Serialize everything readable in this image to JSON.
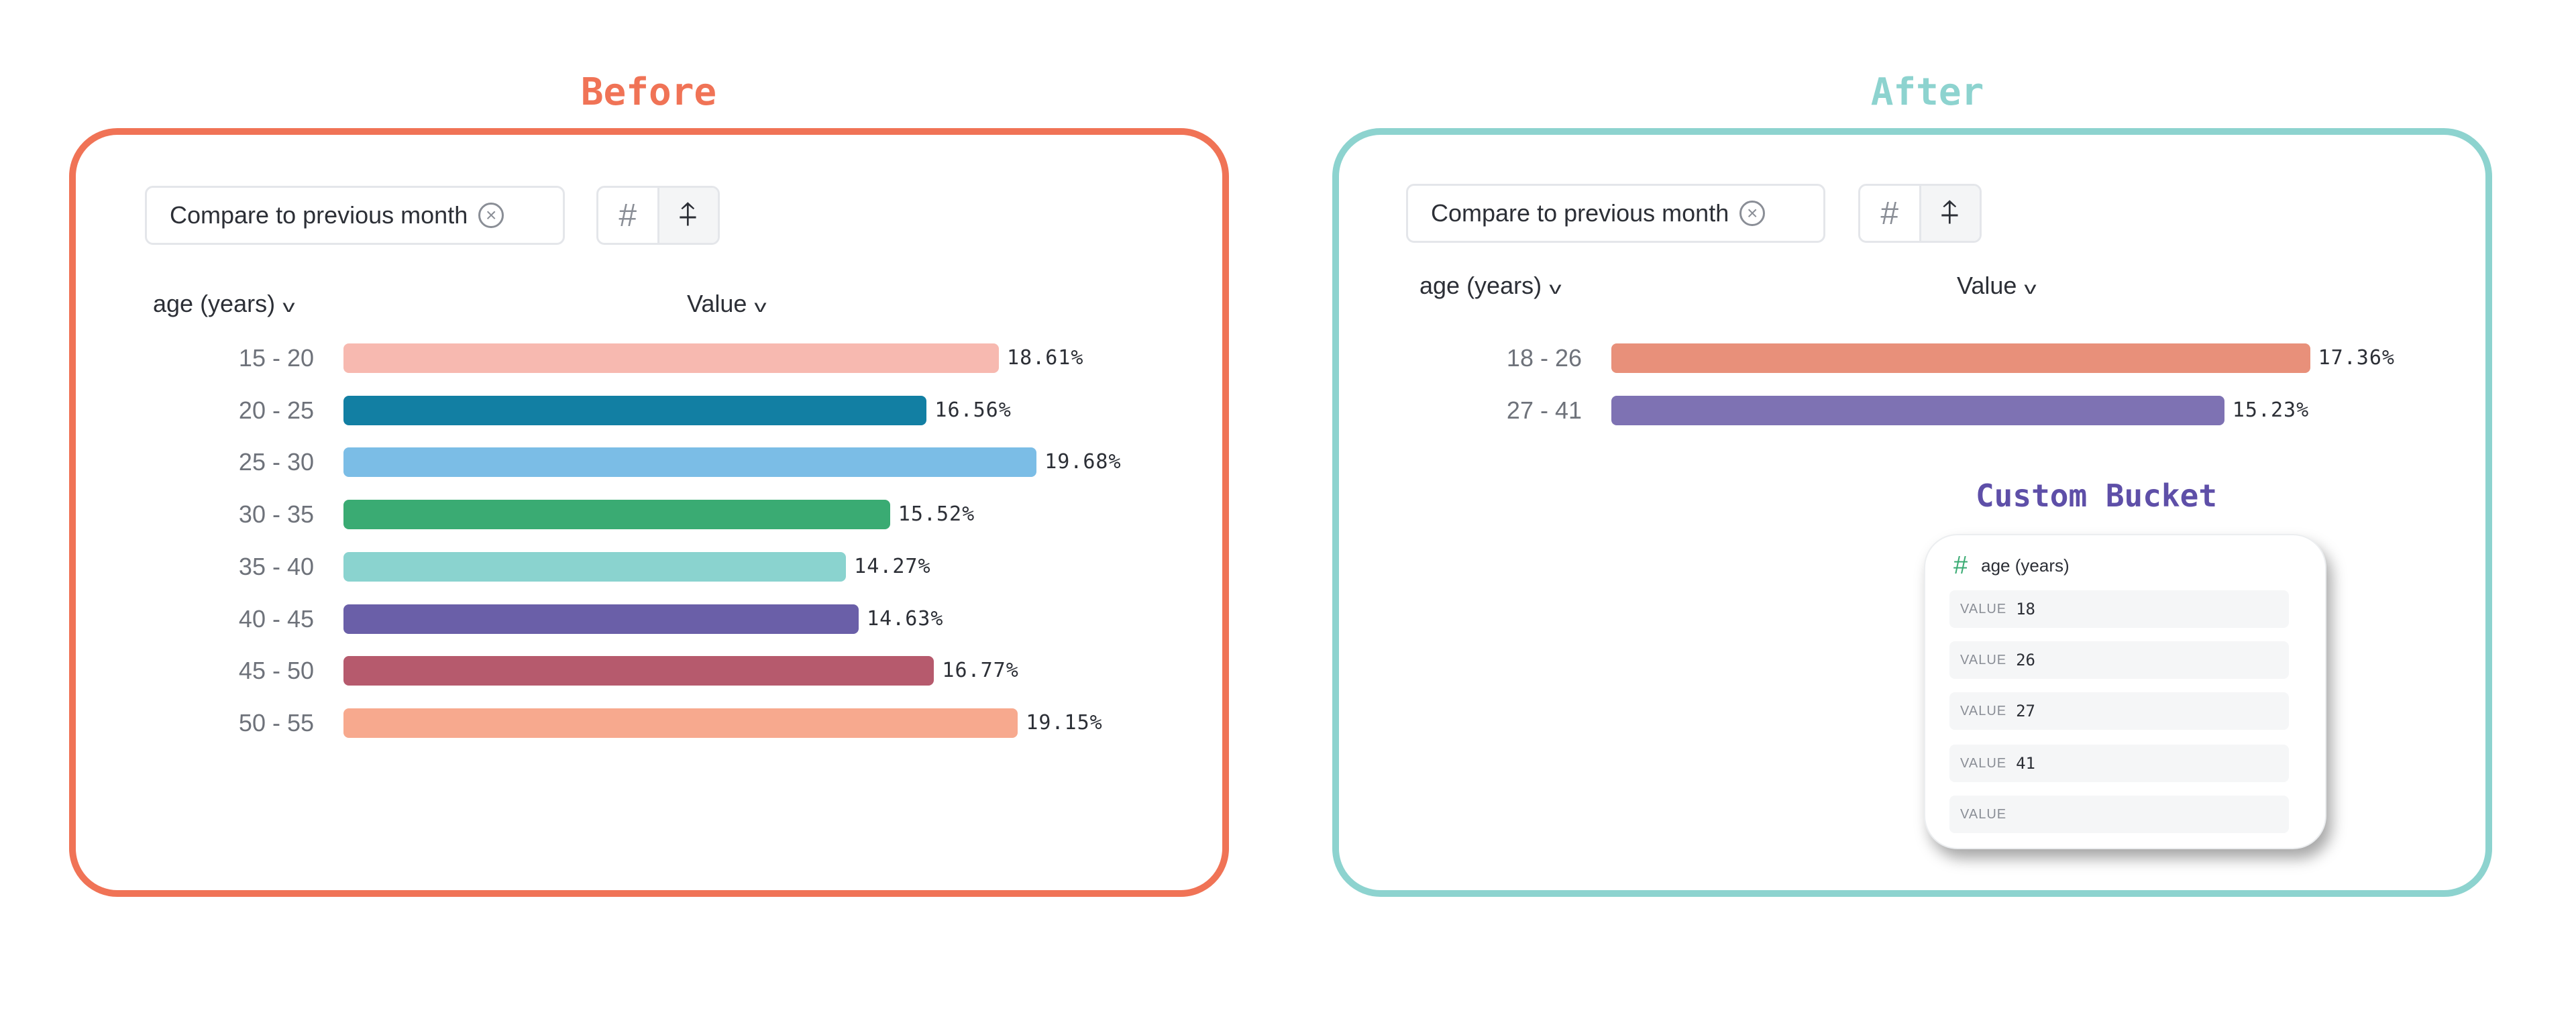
{
  "before": {
    "title": "Before",
    "title_color": "#f07356",
    "compare_chip": {
      "label": "Compare to previous month",
      "clear_icon": "circle-x-icon"
    },
    "toggle_icons": [
      "hash-icon",
      "arrow-up-split-icon"
    ],
    "headers": {
      "dimension": "age (years)",
      "metric": "Value"
    }
  },
  "after": {
    "title": "After",
    "title_color": "#8dd3cf",
    "compare_chip": {
      "label": "Compare to previous month",
      "clear_icon": "circle-x-icon"
    },
    "toggle_icons": [
      "hash-icon",
      "arrow-up-split-icon"
    ],
    "headers": {
      "dimension": "age (years)",
      "metric": "Value"
    },
    "custom_bucket": {
      "title": "Custom Bucket",
      "property": "age (years)",
      "field_label": "VALUE",
      "values": [
        "18",
        "26",
        "27",
        "41",
        ""
      ]
    }
  },
  "chart_data": [
    {
      "type": "bar",
      "orientation": "horizontal",
      "categories": [
        "15 - 20",
        "20 - 25",
        "25 - 30",
        "30 - 35",
        "35 - 40",
        "40 - 45",
        "45 - 50",
        "50 - 55"
      ],
      "values": [
        18.61,
        16.56,
        19.68,
        15.52,
        14.27,
        14.63,
        16.77,
        19.15
      ],
      "labels": [
        "18.61%",
        "16.56%",
        "19.68%",
        "15.52%",
        "14.27%",
        "14.63%",
        "16.77%",
        "19.15%"
      ],
      "colors": [
        "#f7b9b0",
        "#127fa3",
        "#7bbde6",
        "#3aab73",
        "#8ad3cf",
        "#6a5fa8",
        "#b65a6d",
        "#f7a98e"
      ],
      "unit": "%",
      "grid": false
    },
    {
      "type": "bar",
      "orientation": "horizontal",
      "categories": [
        "18 - 26",
        "27 - 41"
      ],
      "values": [
        17.36,
        15.23
      ],
      "labels": [
        "17.36%",
        "15.23%"
      ],
      "colors": [
        "#e8907a",
        "#7e72b3"
      ],
      "unit": "%",
      "grid": false
    }
  ]
}
